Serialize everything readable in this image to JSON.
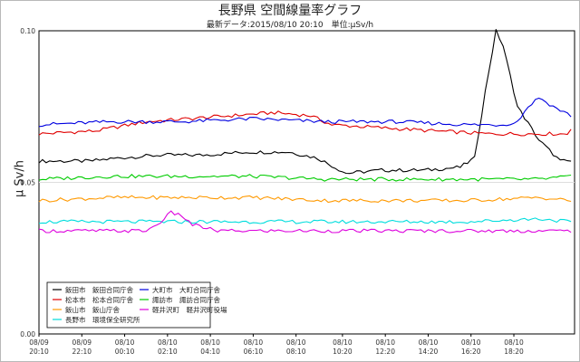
{
  "chart_data": {
    "type": "line",
    "title": "長野県 空間線量率グラフ",
    "subtitle": "最新データ:2015/08/10 20:10　単位:μSv/h",
    "ylabel": "μ Sv/h",
    "ylim": [
      0.0,
      0.1
    ],
    "yticks": [
      "0.10",
      "0.05",
      "0.00"
    ],
    "grid": true,
    "legend_position": "bottom-left",
    "x_start": "08/09 20:10",
    "x_end": "08/10 20:10",
    "x_step_minutes": 10,
    "xticks": [
      {
        "date": "08/09",
        "time": "20:10",
        "index": 0
      },
      {
        "date": "08/09",
        "time": "22:10",
        "index": 12
      },
      {
        "date": "08/10",
        "time": "00:10",
        "index": 24
      },
      {
        "date": "08/10",
        "time": "02:10",
        "index": 36
      },
      {
        "date": "08/10",
        "time": "04:10",
        "index": 48
      },
      {
        "date": "08/10",
        "time": "06:10",
        "index": 60
      },
      {
        "date": "08/10",
        "time": "08:10",
        "index": 72
      },
      {
        "date": "08/10",
        "time": "10:20",
        "index": 85
      },
      {
        "date": "08/10",
        "time": "12:20",
        "index": 97
      },
      {
        "date": "08/10",
        "time": "14:20",
        "index": 109
      },
      {
        "date": "08/10",
        "time": "16:20",
        "index": 121
      },
      {
        "date": "08/10",
        "time": "18:20",
        "index": 133
      }
    ],
    "series": [
      {
        "name": "飯田市　飯田合同庁舎",
        "color": "#000000",
        "keyframes": [
          [
            0,
            0.057
          ],
          [
            14,
            0.057
          ],
          [
            22,
            0.058
          ],
          [
            34,
            0.059
          ],
          [
            46,
            0.059
          ],
          [
            58,
            0.06
          ],
          [
            70,
            0.06
          ],
          [
            78,
            0.058
          ],
          [
            86,
            0.053
          ],
          [
            96,
            0.054
          ],
          [
            108,
            0.054
          ],
          [
            118,
            0.055
          ],
          [
            122,
            0.058
          ],
          [
            125,
            0.08
          ],
          [
            128,
            0.1
          ],
          [
            130,
            0.095
          ],
          [
            134,
            0.075
          ],
          [
            140,
            0.064
          ],
          [
            146,
            0.057
          ],
          [
            149,
            0.057
          ]
        ]
      },
      {
        "name": "松本市　松本合同庁舎",
        "color": "#e00000",
        "keyframes": [
          [
            0,
            0.066
          ],
          [
            16,
            0.067
          ],
          [
            30,
            0.07
          ],
          [
            42,
            0.071
          ],
          [
            54,
            0.072
          ],
          [
            66,
            0.073
          ],
          [
            76,
            0.072
          ],
          [
            82,
            0.069
          ],
          [
            96,
            0.068
          ],
          [
            110,
            0.067
          ],
          [
            126,
            0.066
          ],
          [
            140,
            0.066
          ],
          [
            148,
            0.066
          ],
          [
            149,
            0.068
          ]
        ]
      },
      {
        "name": "大町市　大町合同庁舎",
        "color": "#0000e0",
        "keyframes": [
          [
            0,
            0.069
          ],
          [
            20,
            0.07
          ],
          [
            40,
            0.07
          ],
          [
            60,
            0.071
          ],
          [
            80,
            0.07
          ],
          [
            100,
            0.07
          ],
          [
            120,
            0.069
          ],
          [
            130,
            0.069
          ],
          [
            134,
            0.07
          ],
          [
            137,
            0.075
          ],
          [
            140,
            0.078
          ],
          [
            144,
            0.075
          ],
          [
            149,
            0.072
          ]
        ]
      },
      {
        "name": "諏訪市　諏訪合同庁舎",
        "color": "#00cc00",
        "keyframes": [
          [
            0,
            0.051
          ],
          [
            20,
            0.052
          ],
          [
            40,
            0.052
          ],
          [
            60,
            0.052
          ],
          [
            80,
            0.051
          ],
          [
            100,
            0.051
          ],
          [
            120,
            0.051
          ],
          [
            140,
            0.051
          ],
          [
            149,
            0.052
          ]
        ]
      },
      {
        "name": "飯山市　飯山庁舎",
        "color": "#ff9900",
        "keyframes": [
          [
            0,
            0.044
          ],
          [
            20,
            0.045
          ],
          [
            40,
            0.045
          ],
          [
            60,
            0.045
          ],
          [
            80,
            0.044
          ],
          [
            100,
            0.044
          ],
          [
            120,
            0.044
          ],
          [
            140,
            0.045
          ],
          [
            149,
            0.044
          ]
        ]
      },
      {
        "name": "長野市　環境保全研究所",
        "color": "#00dddd",
        "keyframes": [
          [
            0,
            0.037
          ],
          [
            20,
            0.037
          ],
          [
            40,
            0.037
          ],
          [
            60,
            0.037
          ],
          [
            80,
            0.037
          ],
          [
            100,
            0.037
          ],
          [
            120,
            0.037
          ],
          [
            140,
            0.038
          ],
          [
            149,
            0.037
          ]
        ]
      },
      {
        "name": "軽井沢町　軽井沢町役場",
        "color": "#dd00dd",
        "keyframes": [
          [
            0,
            0.034
          ],
          [
            20,
            0.034
          ],
          [
            30,
            0.034
          ],
          [
            33,
            0.036
          ],
          [
            37,
            0.04
          ],
          [
            40,
            0.039
          ],
          [
            43,
            0.036
          ],
          [
            50,
            0.034
          ],
          [
            70,
            0.034
          ],
          [
            90,
            0.034
          ],
          [
            110,
            0.034
          ],
          [
            130,
            0.034
          ],
          [
            149,
            0.034
          ]
        ]
      }
    ]
  }
}
